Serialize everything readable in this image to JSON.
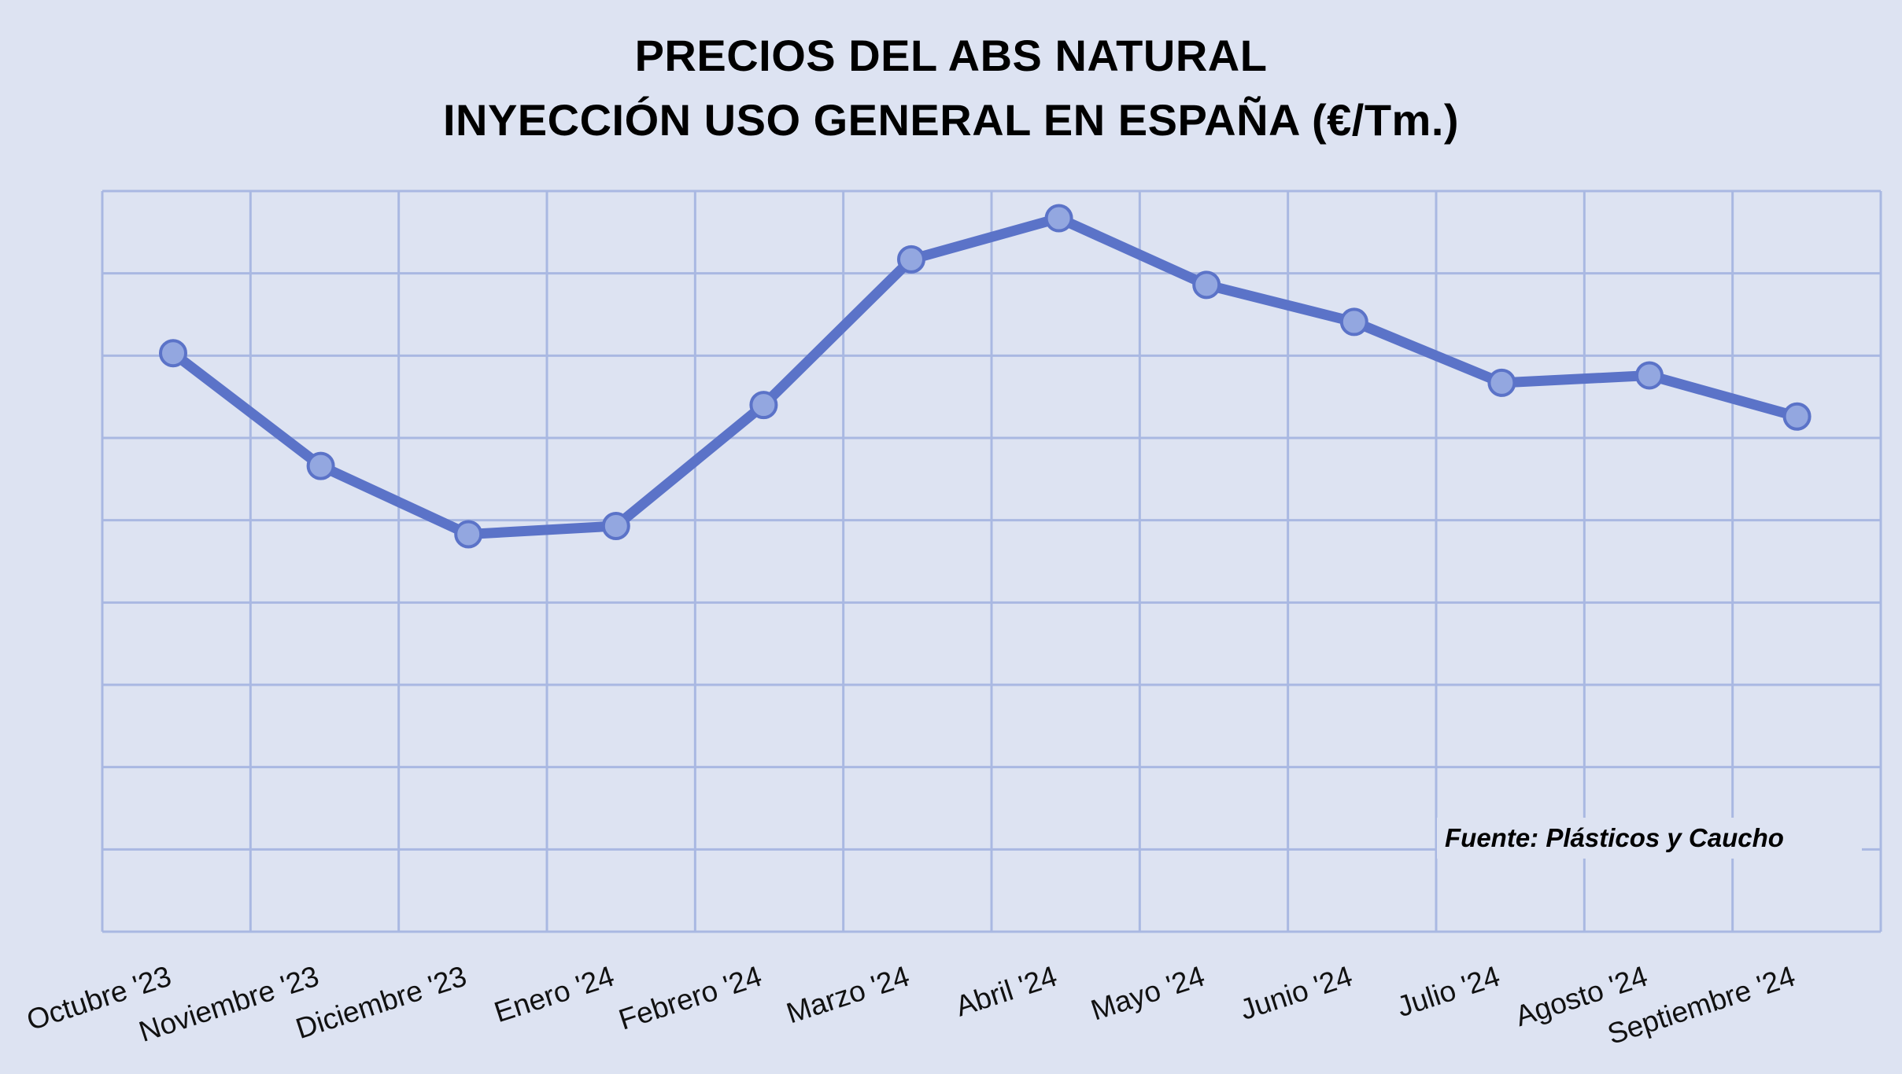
{
  "chart_data": {
    "type": "line",
    "title": "PRECIOS DEL ABS NATURAL",
    "subtitle": "INYECCIÓN USO GENERAL EN ESPAÑA (€/Tm.)",
    "categories": [
      "Octubre '23",
      "Noviembre '23",
      "Diciembre '23",
      "Enero '24",
      "Febrero '24",
      "Marzo '24",
      "Abril '24",
      "Mayo '24",
      "Junio '24",
      "Julio '24",
      "Agosto '24",
      "Septiembre '24"
    ],
    "series": [
      {
        "values": [
          5.03,
          3.66,
          2.83,
          2.93,
          4.4,
          6.17,
          6.67,
          5.86,
          5.41,
          4.67,
          4.76,
          4.26
        ],
        "color": "#5b73c8"
      }
    ],
    "ylim": [
      -2,
      7
    ],
    "grid": true,
    "marker_color": "#93a7e0",
    "source": "Fuente: Plásticos y Caucho"
  }
}
